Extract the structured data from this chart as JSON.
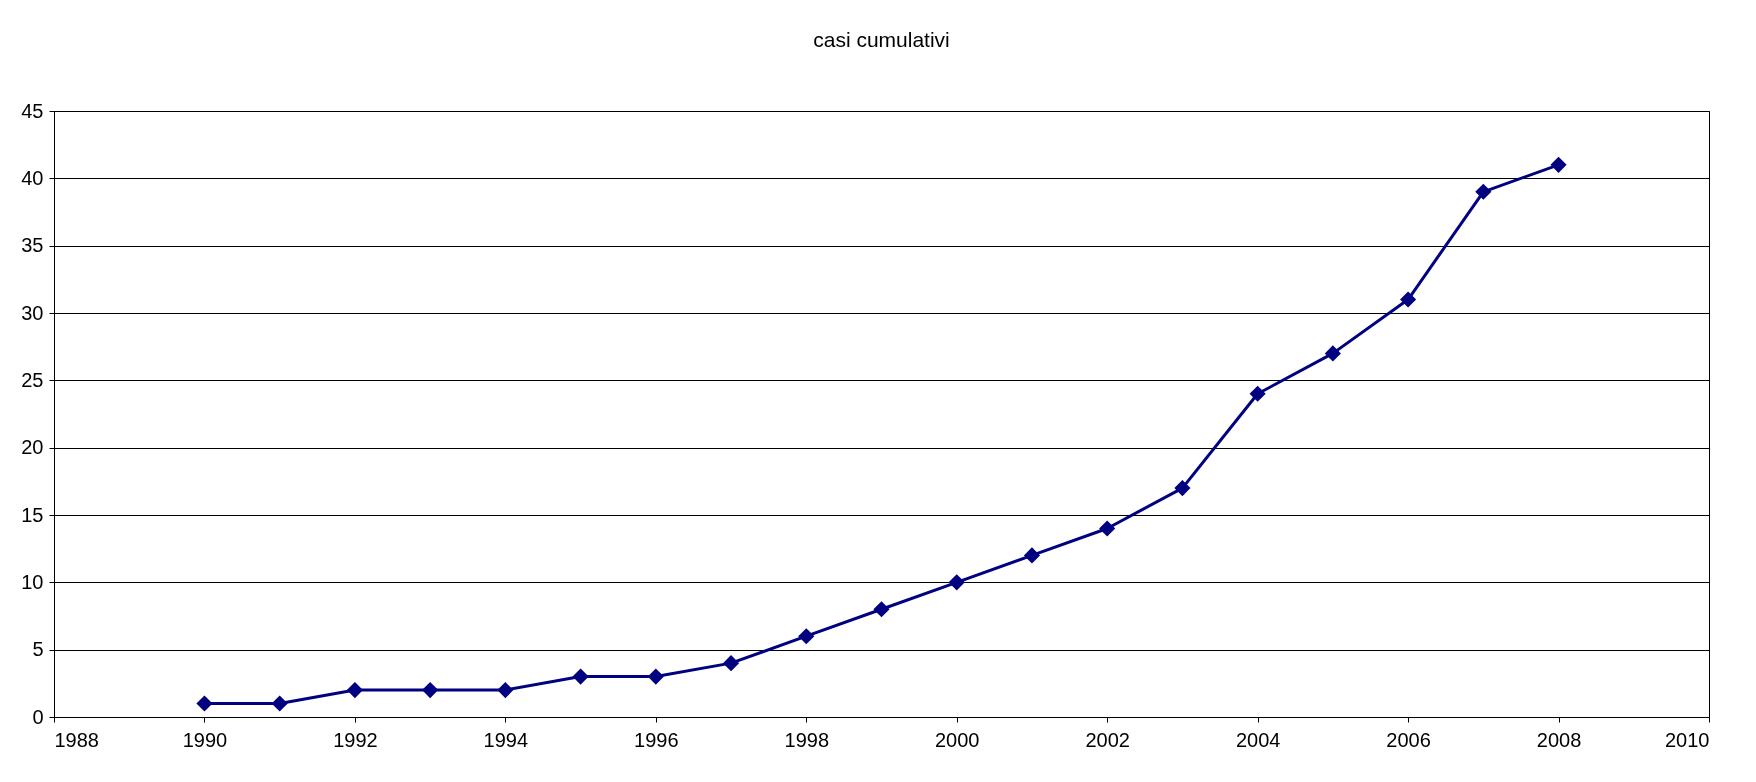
{
  "chart_data": {
    "type": "line",
    "title": "casi cumulativi",
    "x": [
      1990,
      1991,
      1992,
      1993,
      1994,
      1995,
      1996,
      1997,
      1998,
      1999,
      2000,
      2001,
      2002,
      2003,
      2004,
      2005,
      2006,
      2007,
      2008
    ],
    "series": [
      {
        "color": "#000080",
        "values": [
          1,
          1,
          2,
          2,
          2,
          3,
          3,
          4,
          6,
          8,
          10,
          12,
          14,
          17,
          24,
          27,
          31,
          39,
          41
        ]
      }
    ],
    "xlim": [
      1988,
      2010
    ],
    "xticks": [
      1988,
      1990,
      1992,
      1994,
      1996,
      1998,
      2000,
      2002,
      2004,
      2006,
      2008,
      2010
    ],
    "ylim": [
      0,
      45
    ],
    "yticks": [
      0,
      5,
      10,
      15,
      20,
      25,
      30,
      35,
      40,
      45
    ],
    "grid": "y",
    "legend": false,
    "marker": "diamond",
    "line_style": "solid"
  }
}
